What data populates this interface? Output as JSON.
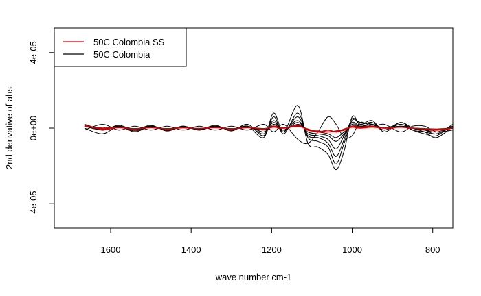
{
  "chart_data": {
    "type": "line",
    "title": "",
    "xlabel": "wave number cm-1",
    "ylabel": "2nd derivative of abs",
    "xlim": [
      1740,
      750
    ],
    "ylim": [
      -5.3e-05,
      5.3e-05
    ],
    "x_ticks": [
      {
        "value": 1600,
        "label": "1600"
      },
      {
        "value": 1400,
        "label": "1400"
      },
      {
        "value": 1200,
        "label": "1200"
      },
      {
        "value": 1000,
        "label": "1000"
      },
      {
        "value": 800,
        "label": "800"
      }
    ],
    "y_ticks": [
      {
        "value": 4e-05,
        "label": "4e-05"
      },
      {
        "value": 0,
        "label": "0e+00"
      },
      {
        "value": -4e-05,
        "label": "-4e-05"
      }
    ],
    "legend": {
      "position": "top-left",
      "entries": [
        {
          "label": "50C Colombia SS",
          "color": "#cc0000"
        },
        {
          "label": "50C Colombia",
          "color": "#000000"
        }
      ]
    },
    "series": [
      {
        "group": "black",
        "color": "#000000",
        "x": [
          1665,
          1620,
          1580,
          1540,
          1500,
          1460,
          1420,
          1380,
          1340,
          1300,
          1260,
          1220,
          1195,
          1170,
          1135,
          1110,
          1085,
          1060,
          1040,
          1020,
          1000,
          980,
          950,
          920,
          880,
          850,
          820,
          790,
          750
        ],
        "y": [
          1e-06,
          -1e-06,
          1e-06,
          -1.5e-06,
          1e-06,
          -1e-06,
          1e-06,
          -1e-06,
          1e-06,
          -1e-06,
          1e-06,
          -5e-06,
          8e-06,
          -2e-06,
          1.2e-05,
          -8e-06,
          -1e-05,
          -1.4e-05,
          -2.2e-05,
          -1.2e-05,
          6e-06,
          2e-06,
          4e-06,
          -2e-06,
          3e-06,
          -1e-06,
          -3e-06,
          -4e-06,
          2e-06
        ]
      },
      {
        "group": "black",
        "color": "#000000",
        "x": [
          1665,
          1620,
          1580,
          1540,
          1500,
          1460,
          1420,
          1380,
          1340,
          1300,
          1260,
          1220,
          1195,
          1170,
          1135,
          1110,
          1085,
          1060,
          1040,
          1020,
          1000,
          980,
          950,
          920,
          880,
          850,
          820,
          790,
          750
        ],
        "y": [
          2e-06,
          -1e-06,
          1.5e-06,
          -1e-06,
          1.5e-06,
          -1.5e-06,
          1e-06,
          -1e-06,
          1.5e-06,
          -1.5e-06,
          2e-06,
          -4e-06,
          6e-06,
          -3e-06,
          8e-06,
          -5e-06,
          -7e-06,
          -1e-05,
          -1.9e-05,
          -8e-06,
          4e-06,
          3e-06,
          2e-06,
          -1e-06,
          2e-06,
          -1e-06,
          -2e-06,
          -3e-06,
          1e-06
        ]
      },
      {
        "group": "black",
        "color": "#000000",
        "x": [
          1665,
          1620,
          1580,
          1540,
          1500,
          1460,
          1420,
          1380,
          1340,
          1300,
          1260,
          1220,
          1195,
          1170,
          1135,
          1110,
          1085,
          1060,
          1040,
          1020,
          1000,
          980,
          950,
          920,
          880,
          850,
          820,
          790,
          750
        ],
        "y": [
          0,
          -3e-06,
          1e-06,
          -2e-06,
          1e-06,
          -1e-06,
          1e-06,
          -1e-06,
          1e-06,
          -1e-06,
          1e-06,
          -3e-06,
          4e-06,
          -2e-06,
          6e-06,
          -4e-06,
          -5e-06,
          -8e-06,
          -1.5e-05,
          -6e-06,
          5e-06,
          2e-06,
          3e-06,
          -1e-06,
          3e-06,
          0,
          -2e-06,
          -5e-06,
          1e-06
        ]
      },
      {
        "group": "black",
        "color": "#000000",
        "x": [
          1665,
          1620,
          1580,
          1540,
          1500,
          1460,
          1420,
          1380,
          1340,
          1300,
          1260,
          1220,
          1195,
          1170,
          1135,
          1110,
          1085,
          1060,
          1040,
          1020,
          1000,
          980,
          950,
          920,
          880,
          850,
          820,
          790,
          750
        ],
        "y": [
          2e-06,
          -5e-07,
          1e-06,
          -1e-06,
          1e-06,
          -1e-06,
          5e-07,
          -5e-07,
          1e-06,
          -1e-06,
          1e-06,
          -2e-06,
          2e-06,
          -1e-06,
          4e-06,
          -3e-06,
          -4e-06,
          -6e-06,
          -1.1e-05,
          -4e-06,
          3e-06,
          1e-06,
          2e-06,
          0,
          2e-06,
          0,
          -1e-06,
          -3e-06,
          2e-06
        ]
      },
      {
        "group": "black",
        "color": "#000000",
        "x": [
          1665,
          1620,
          1580,
          1540,
          1500,
          1460,
          1420,
          1380,
          1340,
          1300,
          1260,
          1220,
          1195,
          1170,
          1135,
          1110,
          1085,
          1060,
          1040,
          1020,
          1000,
          980,
          950,
          920,
          880,
          850,
          820,
          790,
          750
        ],
        "y": [
          1e-06,
          0,
          5e-07,
          -5e-07,
          1e-06,
          -1e-06,
          5e-07,
          -5e-07,
          5e-07,
          -5e-07,
          1e-06,
          -2e-06,
          3e-06,
          -1e-06,
          3e-06,
          -2e-06,
          -3e-06,
          -4e-06,
          -7e-06,
          -3e-06,
          2e-06,
          1e-06,
          1e-06,
          0,
          1e-06,
          0,
          -1e-06,
          -2e-06,
          1e-06
        ]
      },
      {
        "group": "black",
        "color": "#000000",
        "x": [
          1665,
          1620,
          1580,
          1540,
          1500,
          1460,
          1420,
          1380,
          1340,
          1300,
          1260,
          1220,
          1195,
          1170,
          1135,
          1110,
          1085,
          1060,
          1040,
          1020,
          1000,
          980,
          950,
          920,
          880,
          850,
          820,
          790,
          750
        ],
        "y": [
          -1e-06,
          2e-06,
          -1e-06,
          1e-06,
          -1e-06,
          1e-06,
          -1e-06,
          1e-06,
          -1e-06,
          1e-06,
          -1e-06,
          2e-06,
          -2e-06,
          2e-06,
          -6e-06,
          -8e-06,
          -2e-06,
          6e-06,
          2e-06,
          -5e-06,
          -4e-06,
          3e-06,
          1e-06,
          2e-06,
          -2e-06,
          1e-06,
          1e-06,
          -2e-06,
          -1e-06
        ]
      },
      {
        "group": "black",
        "color": "#000000",
        "x": [
          1665,
          1620,
          1580,
          1540,
          1500,
          1460,
          1420,
          1380,
          1340,
          1300,
          1260,
          1220,
          1195,
          1170,
          1135,
          1110,
          1085,
          1060,
          1040,
          1020,
          1000,
          980,
          950,
          920,
          880,
          850,
          820,
          790,
          750
        ],
        "y": [
          1e-06,
          -1e-06,
          5e-07,
          -5e-07,
          5e-07,
          -5e-07,
          5e-07,
          -5e-07,
          5e-07,
          -5e-07,
          5e-07,
          -1e-06,
          1e-06,
          -1e-06,
          2e-06,
          -1e-06,
          -2e-06,
          -3e-06,
          -5e-06,
          -2e-06,
          1e-06,
          1e-06,
          1e-06,
          0,
          1e-06,
          0,
          -1e-06,
          -1e-06,
          5e-07
        ]
      },
      {
        "group": "red",
        "color": "#cc0000",
        "x": [
          1665,
          1620,
          1580,
          1540,
          1500,
          1460,
          1420,
          1380,
          1340,
          1300,
          1260,
          1220,
          1195,
          1170,
          1135,
          1110,
          1085,
          1060,
          1040,
          1020,
          1000,
          980,
          950,
          920,
          880,
          850,
          820,
          790,
          750
        ],
        "y": [
          1e-06,
          0,
          5e-07,
          -5e-07,
          5e-07,
          -5e-07,
          3e-07,
          -3e-07,
          5e-07,
          -5e-07,
          5e-07,
          -5e-07,
          1e-06,
          0,
          1.5e-06,
          -1e-06,
          -1.5e-06,
          -2e-06,
          -1.5e-06,
          -1e-06,
          1e-06,
          5e-07,
          1e-06,
          0,
          5e-07,
          0,
          -5e-07,
          -1e-06,
          0
        ]
      },
      {
        "group": "red",
        "color": "#cc0000",
        "x": [
          1665,
          1620,
          1580,
          1540,
          1500,
          1460,
          1420,
          1380,
          1340,
          1300,
          1260,
          1220,
          1195,
          1170,
          1135,
          1110,
          1085,
          1060,
          1040,
          1020,
          1000,
          980,
          950,
          920,
          880,
          850,
          820,
          790,
          750
        ],
        "y": [
          1.5e-06,
          -5e-07,
          3e-07,
          -3e-07,
          3e-07,
          -3e-07,
          2e-07,
          -2e-07,
          3e-07,
          -3e-07,
          3e-07,
          -3e-07,
          5e-07,
          0,
          1e-06,
          -5e-07,
          -2e-06,
          -1e-06,
          -2e-06,
          -5e-07,
          5e-07,
          0,
          5e-07,
          0,
          5e-07,
          0,
          -3e-07,
          -5e-07,
          0
        ]
      }
    ]
  }
}
